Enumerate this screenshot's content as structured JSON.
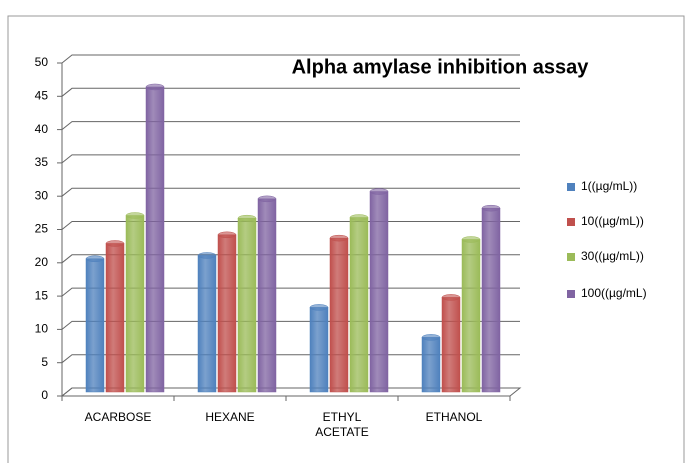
{
  "chart_data": {
    "type": "bar3d",
    "title": "Alpha amylase inhibition assay",
    "categories": [
      "ACARBOSE",
      "HEXANE",
      "ETHYL ACETATE",
      "ETHANOL"
    ],
    "series": [
      {
        "name": "1((µg/mL))",
        "color": "#4f81bd",
        "values": [
          20,
          20.5,
          12.7,
          8.2
        ]
      },
      {
        "name": "10((µg/mL))",
        "color": "#c0504d",
        "values": [
          22.3,
          23.6,
          23.1,
          14.2
        ]
      },
      {
        "name": "30((µg/mL))",
        "color": "#9bbb59",
        "values": [
          26.5,
          26.1,
          26.2,
          22.9
        ]
      },
      {
        "name": "100((µg/mL)",
        "color": "#8064a2",
        "values": [
          45.8,
          29,
          30.1,
          27.6
        ]
      }
    ],
    "ylim": [
      0,
      50
    ],
    "yticks": [
      0,
      5,
      10,
      15,
      20,
      25,
      30,
      35,
      40,
      45,
      50
    ],
    "grid": true,
    "legend": "right"
  }
}
